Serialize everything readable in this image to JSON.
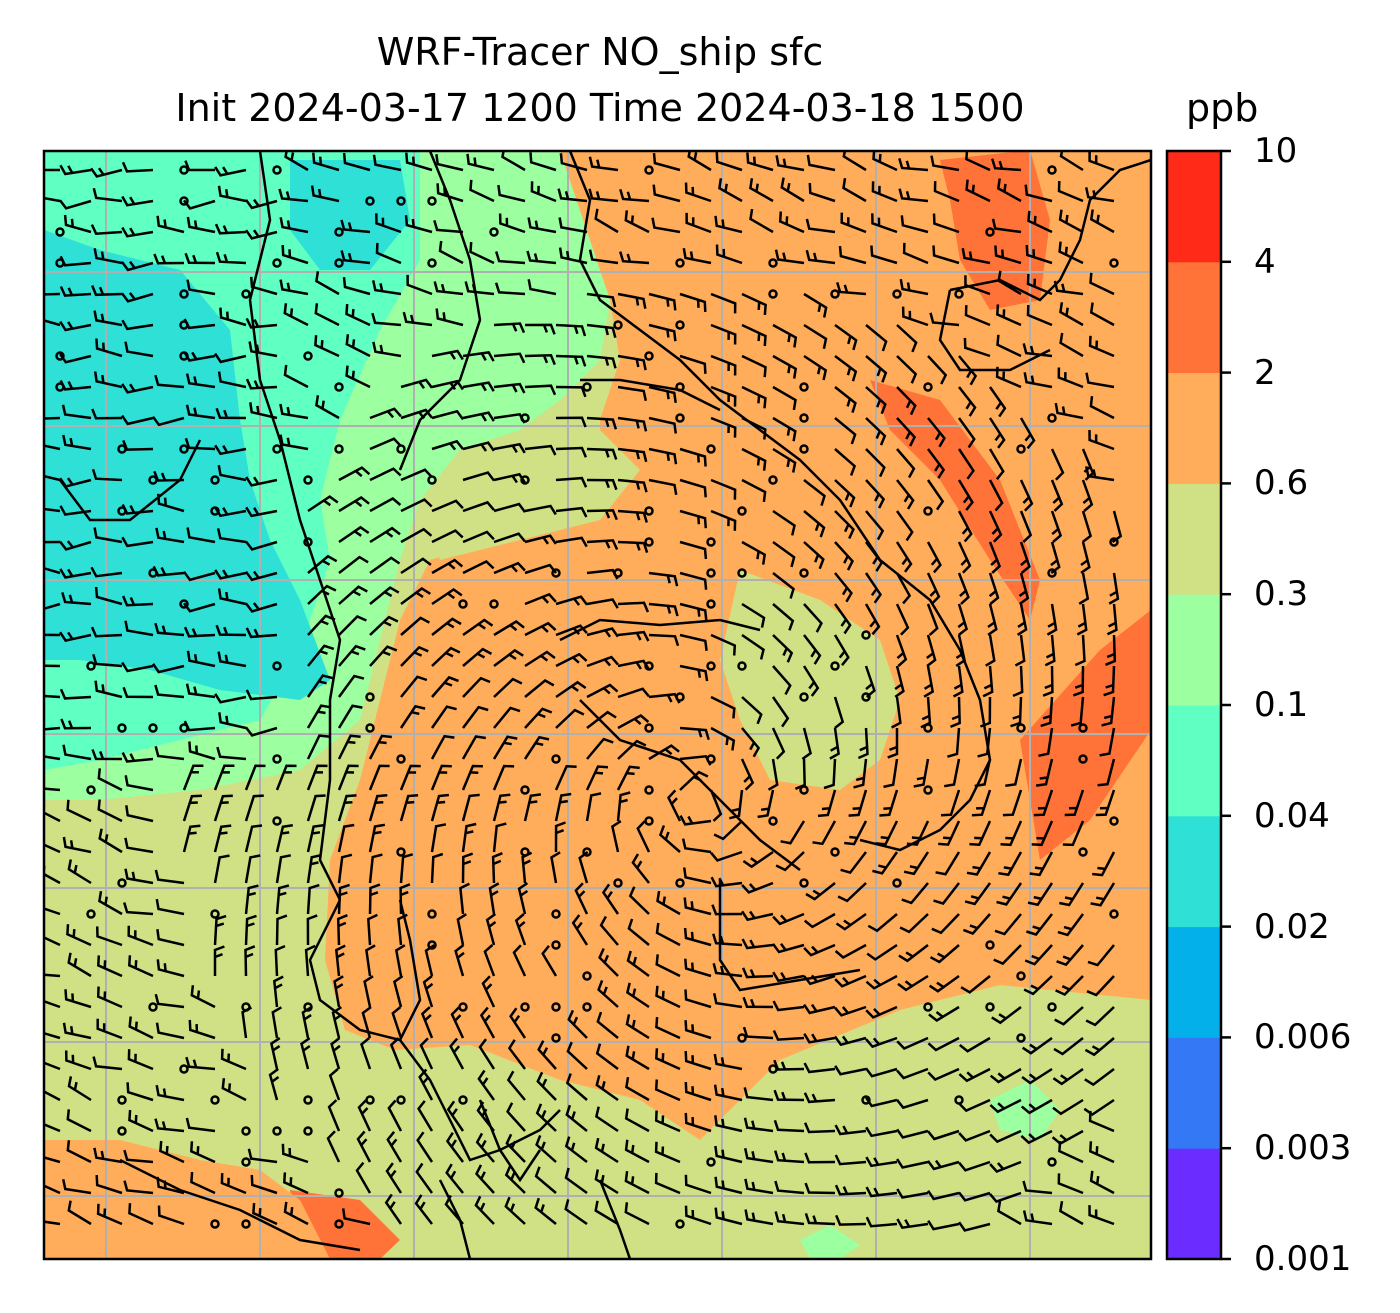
{
  "title": {
    "line1": "WRF-Tracer NO_ship sfc",
    "line2": "Init 2024-03-17 1200 Time 2024-03-18 1500",
    "unit": "ppb"
  },
  "colorbar": {
    "levels": [
      "0.001",
      "0.003",
      "0.006",
      "0.02",
      "0.04",
      "0.1",
      "0.3",
      "0.6",
      "2",
      "4",
      "10"
    ],
    "colors": [
      "#6a2cff",
      "#3478f6",
      "#04b0ea",
      "#2fe0d6",
      "#60ffc2",
      "#9cffa0",
      "#cfe085",
      "#ffad5a",
      "#ff7238",
      "#ff2b18"
    ]
  },
  "map": {
    "fill_colors": {
      "cyan": "#2fe0d6",
      "mint": "#60ffc2",
      "lightgreen": "#9cffa0",
      "olive": "#cfe085",
      "orange": "#ffad5a",
      "darkorange": "#ff7238"
    },
    "gridline_color": "#b0b0b0",
    "coastline_color": "#000000",
    "wind_barb_color": "#000000"
  }
}
